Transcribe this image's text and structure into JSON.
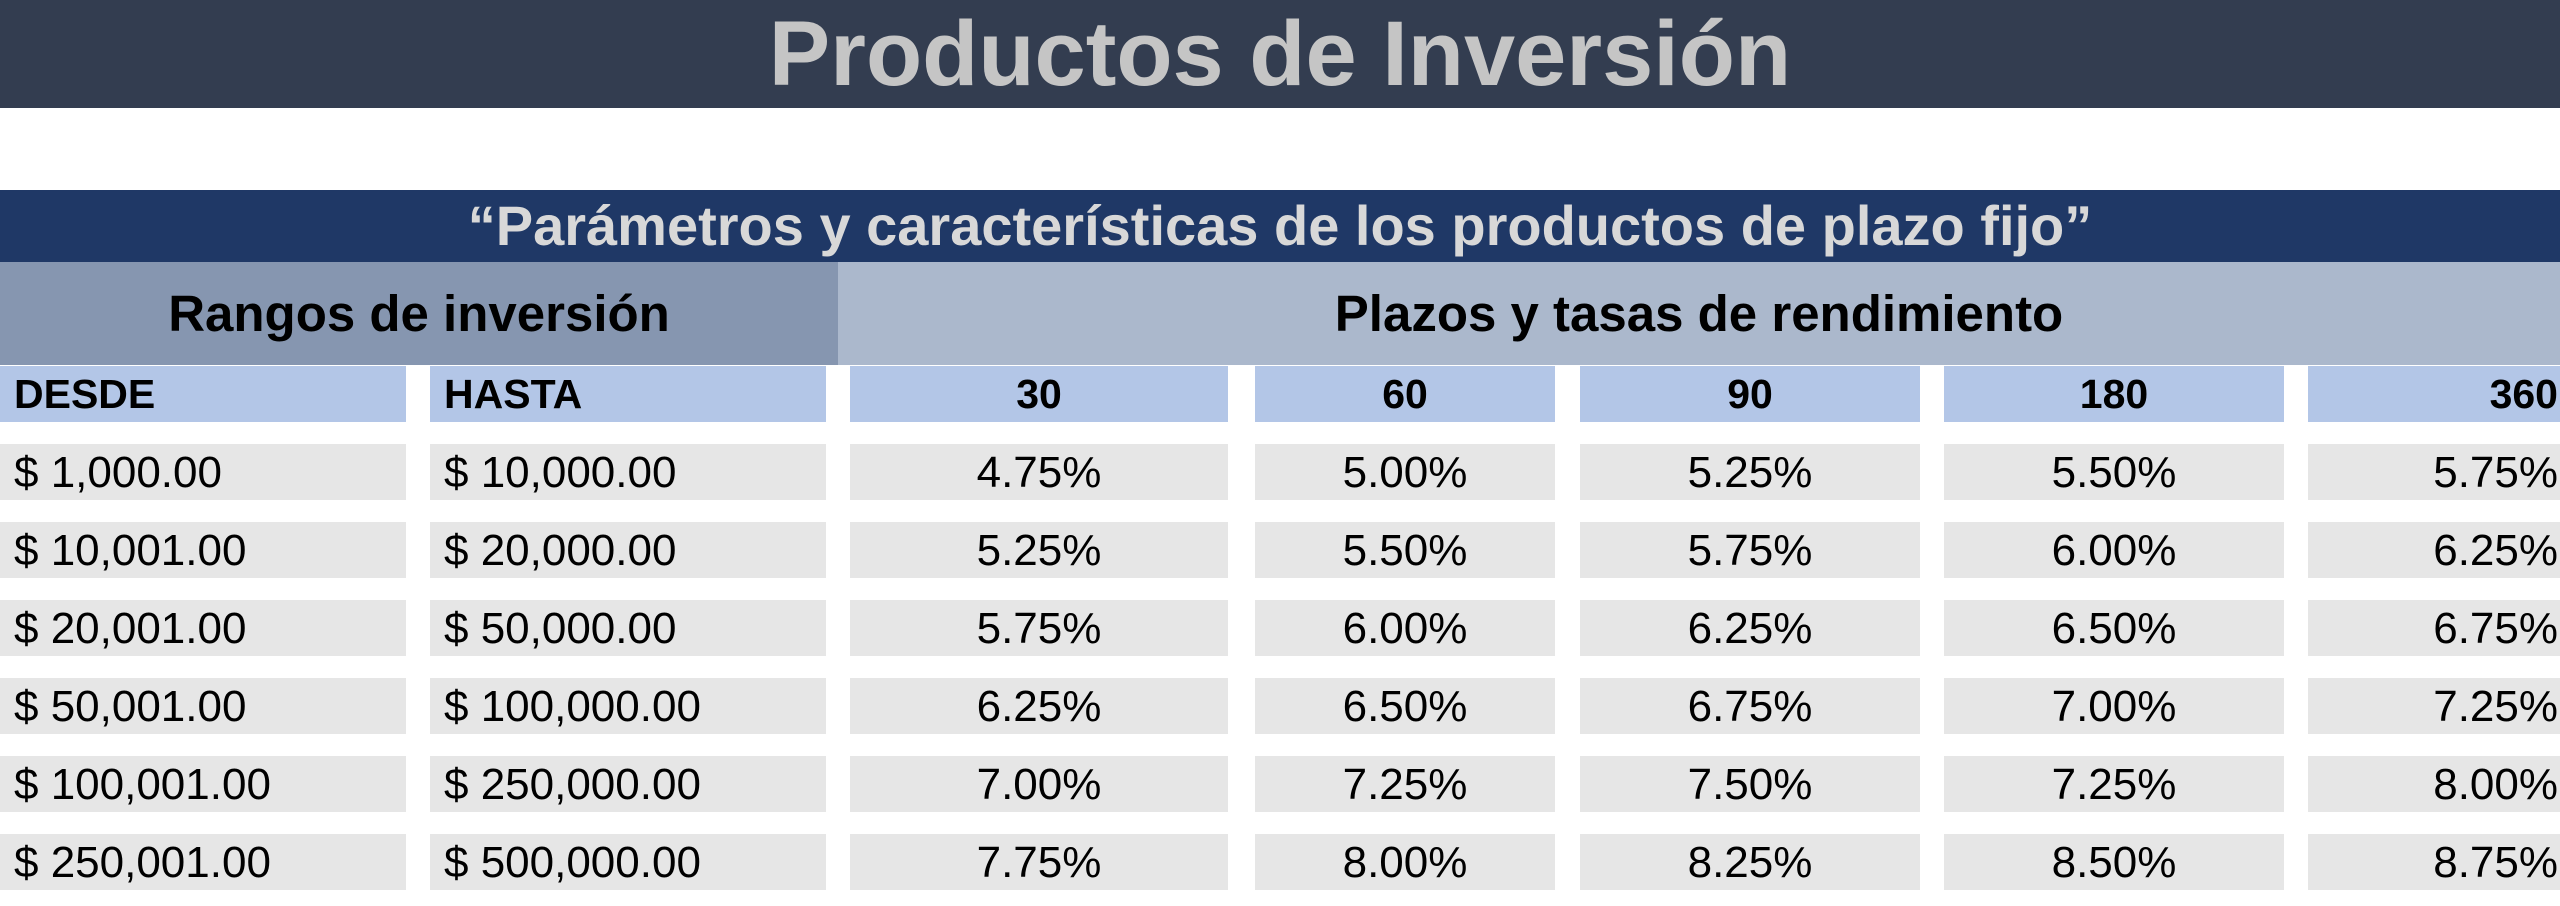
{
  "title": "Productos de Inversión",
  "subtitle": "“Parámetros y características de los productos de plazo fijo”",
  "groups": {
    "ranges": "Rangos de inversión",
    "terms": "Plazos y tasas de rendimiento"
  },
  "columns": [
    "DESDE",
    "HASTA",
    "30",
    "60",
    "90",
    "180",
    "360"
  ],
  "rows": [
    [
      "$ 1,000.00",
      "$ 10,000.00",
      "4.75%",
      "5.00%",
      "5.25%",
      "5.50%",
      "5.75%"
    ],
    [
      "$ 10,001.00",
      "$ 20,000.00",
      "5.25%",
      "5.50%",
      "5.75%",
      "6.00%",
      "6.25%"
    ],
    [
      "$ 20,001.00",
      "$ 50,000.00",
      "5.75%",
      "6.00%",
      "6.25%",
      "6.50%",
      "6.75%"
    ],
    [
      "$ 50,001.00",
      "$ 100,000.00",
      "6.25%",
      "6.50%",
      "6.75%",
      "7.00%",
      "7.25%"
    ],
    [
      "$ 100,001.00",
      "$ 250,000.00",
      "7.00%",
      "7.25%",
      "7.50%",
      "7.25%",
      "8.00%"
    ],
    [
      "$ 250,001.00",
      "$ 500,000.00",
      "7.75%",
      "8.00%",
      "8.25%",
      "8.50%",
      "8.75%"
    ]
  ],
  "colors": {
    "title_bg": "#333d50",
    "subtitle_bg": "#1f3866",
    "group_ranges_bg": "#8696b0",
    "group_terms_bg": "#abb8cc",
    "header_bg": "#b3c6e7",
    "cell_bg": "#e6e6e6"
  }
}
